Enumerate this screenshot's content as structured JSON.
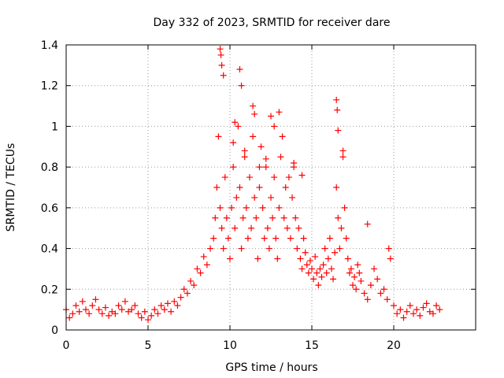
{
  "chart_data": {
    "type": "scatter",
    "title": "Day 332 of 2023, SRMTID for receiver dare",
    "xlabel": "GPS time / hours",
    "ylabel": "SRMTID / TECUs",
    "xlim": [
      0,
      25
    ],
    "ylim": [
      0,
      1.4
    ],
    "x_ticks": [
      0,
      5,
      10,
      15,
      20
    ],
    "x_tick_labels": [
      "0",
      "5",
      "10",
      "15",
      "20"
    ],
    "y_ticks": [
      0,
      0.2,
      0.4,
      0.6,
      0.8,
      1.0,
      1.2,
      1.4
    ],
    "y_tick_labels": [
      "0",
      "0.2",
      "0.4",
      "0.6",
      "0.8",
      "1",
      "1.2",
      "1.4"
    ],
    "grid": true,
    "marker": "plus",
    "series": [
      {
        "name": "SRMTID",
        "color": "#ff0000",
        "x": [
          0.0,
          0.2,
          0.4,
          0.6,
          0.8,
          1.0,
          1.2,
          1.4,
          1.6,
          1.8,
          2.0,
          2.2,
          2.4,
          2.6,
          2.8,
          3.0,
          3.2,
          3.4,
          3.6,
          3.8,
          4.0,
          4.2,
          4.4,
          4.6,
          4.8,
          5.0,
          5.2,
          5.4,
          5.6,
          5.8,
          6.0,
          6.2,
          6.4,
          6.6,
          6.8,
          7.0,
          7.2,
          7.4,
          7.6,
          7.8,
          8.0,
          8.2,
          8.4,
          8.6,
          8.8,
          9.0,
          9.1,
          9.2,
          9.3,
          9.4,
          9.5,
          9.6,
          9.7,
          9.8,
          9.9,
          10.0,
          10.1,
          10.2,
          10.3,
          10.4,
          10.5,
          10.6,
          10.7,
          10.8,
          10.9,
          11.0,
          11.1,
          11.2,
          11.3,
          11.4,
          11.5,
          11.6,
          11.7,
          11.8,
          11.9,
          12.0,
          12.1,
          12.2,
          12.3,
          12.4,
          12.5,
          12.6,
          12.7,
          12.8,
          12.9,
          13.0,
          13.1,
          13.2,
          13.3,
          13.4,
          13.5,
          13.6,
          13.7,
          13.8,
          13.9,
          14.0,
          14.1,
          14.2,
          14.3,
          14.4,
          14.5,
          14.6,
          14.7,
          14.8,
          14.9,
          15.0,
          15.1,
          15.2,
          15.3,
          15.4,
          15.5,
          15.6,
          15.7,
          15.8,
          15.9,
          16.0,
          16.1,
          16.2,
          16.3,
          16.4,
          16.5,
          16.6,
          16.7,
          16.8,
          16.9,
          17.0,
          17.1,
          17.2,
          17.3,
          17.4,
          17.5,
          17.6,
          17.7,
          17.8,
          17.9,
          18.0,
          18.2,
          18.4,
          18.6,
          18.8,
          19.0,
          19.2,
          19.4,
          19.6,
          19.8,
          20.0,
          20.2,
          20.4,
          20.6,
          20.8,
          21.0,
          21.2,
          21.4,
          21.6,
          21.8,
          22.0,
          22.2,
          22.4,
          22.6,
          22.8,
          9.4,
          9.45,
          9.5,
          10.6,
          10.7,
          11.4,
          11.5,
          12.5,
          12.7,
          13.0,
          16.5,
          16.55,
          16.6,
          16.9,
          18.4,
          19.7,
          10.2,
          10.9,
          11.8,
          12.2,
          13.9,
          14.4,
          9.6,
          10.3
        ],
        "y": [
          0.1,
          0.06,
          0.08,
          0.12,
          0.09,
          0.14,
          0.1,
          0.08,
          0.12,
          0.15,
          0.1,
          0.08,
          0.11,
          0.07,
          0.09,
          0.08,
          0.12,
          0.1,
          0.14,
          0.09,
          0.1,
          0.12,
          0.08,
          0.06,
          0.09,
          0.05,
          0.07,
          0.1,
          0.08,
          0.12,
          0.1,
          0.13,
          0.09,
          0.14,
          0.12,
          0.16,
          0.2,
          0.18,
          0.24,
          0.22,
          0.3,
          0.28,
          0.36,
          0.32,
          0.4,
          0.45,
          0.55,
          0.7,
          0.95,
          0.6,
          0.5,
          0.4,
          0.75,
          0.55,
          0.45,
          0.35,
          0.6,
          0.8,
          0.5,
          0.65,
          1.0,
          0.7,
          0.4,
          0.55,
          0.85,
          0.6,
          0.45,
          0.75,
          0.5,
          0.95,
          0.65,
          0.55,
          0.35,
          0.7,
          0.9,
          0.6,
          0.45,
          0.8,
          0.5,
          0.4,
          0.65,
          0.55,
          0.75,
          0.45,
          0.35,
          0.6,
          0.85,
          0.95,
          0.55,
          0.7,
          0.5,
          0.75,
          0.45,
          0.65,
          0.8,
          0.55,
          0.4,
          0.5,
          0.35,
          0.3,
          0.45,
          0.38,
          0.32,
          0.28,
          0.34,
          0.3,
          0.25,
          0.36,
          0.28,
          0.22,
          0.3,
          0.26,
          0.32,
          0.4,
          0.28,
          0.35,
          0.45,
          0.3,
          0.25,
          0.38,
          0.7,
          0.55,
          0.4,
          0.5,
          0.85,
          0.6,
          0.45,
          0.35,
          0.28,
          0.3,
          0.22,
          0.26,
          0.2,
          0.32,
          0.28,
          0.24,
          0.18,
          0.15,
          0.22,
          0.3,
          0.25,
          0.18,
          0.2,
          0.15,
          0.35,
          0.12,
          0.08,
          0.1,
          0.06,
          0.09,
          0.12,
          0.08,
          0.1,
          0.07,
          0.11,
          0.13,
          0.09,
          0.08,
          0.12,
          0.1,
          1.38,
          1.35,
          1.3,
          1.28,
          1.2,
          1.1,
          1.06,
          1.05,
          1.0,
          1.07,
          1.13,
          1.08,
          0.98,
          0.88,
          0.52,
          0.4,
          0.92,
          0.88,
          0.8,
          0.84,
          0.82,
          0.76,
          1.25,
          1.02
        ]
      }
    ]
  }
}
